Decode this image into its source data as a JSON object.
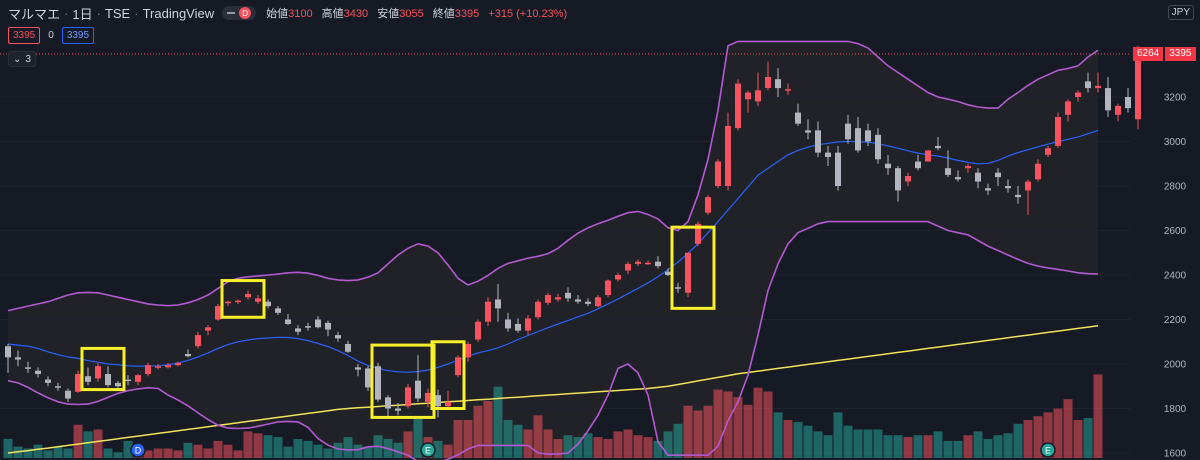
{
  "header": {
    "symbol": "マルマエ",
    "interval": "1日",
    "exchange": "TSE",
    "source": "TradingView",
    "interval_badge": "D",
    "open_label": "始値",
    "open": "3100",
    "high_label": "高値",
    "high": "3430",
    "low_label": "安値",
    "low": "3055",
    "close_label": "終値",
    "close": "3395",
    "change": "+315 (+10.23%)"
  },
  "trade": {
    "sell_price": "3395",
    "spread": "0",
    "buy_price": "3395"
  },
  "indicators_toggle": {
    "count": "3"
  },
  "currency": "JPY",
  "last_price_tag": {
    "countdown": "6264",
    "price": "3395"
  },
  "colors": {
    "background": "#161a25",
    "up_candle": "#f7525f",
    "down_candle": "#b2b5be",
    "bollinger_band": "#b35ad2",
    "bollinger_mid": "#2962ff",
    "long_ma": "#f2e45a",
    "highlight_box": "#f7f02b",
    "volume_up": "#f7525f",
    "volume_down": "#26a69a"
  },
  "chart_data": {
    "type": "candlestick",
    "ylim": [
      1600,
      3420
    ],
    "yticks": [
      1600,
      1800,
      2000,
      2200,
      2400,
      2600,
      2800,
      3000,
      3200
    ],
    "candles": [
      [
        2080,
        2090,
        1960,
        2030
      ],
      [
        2030,
        2060,
        1990,
        2020
      ],
      [
        1985,
        2010,
        1960,
        1980
      ],
      [
        1970,
        1985,
        1940,
        1955
      ],
      [
        1930,
        1945,
        1900,
        1915
      ],
      [
        1900,
        1915,
        1880,
        1895
      ],
      [
        1880,
        1890,
        1830,
        1845
      ],
      [
        1875,
        1970,
        1870,
        1955
      ],
      [
        1945,
        1985,
        1905,
        1920
      ],
      [
        1935,
        2005,
        1920,
        1990
      ],
      [
        1955,
        1990,
        1895,
        1905
      ],
      [
        1915,
        1925,
        1890,
        1900
      ],
      [
        1930,
        1950,
        1905,
        1925
      ],
      [
        1920,
        1955,
        1905,
        1950
      ],
      [
        1955,
        2005,
        1945,
        1995
      ],
      [
        1990,
        2000,
        1975,
        1990
      ],
      [
        1985,
        2005,
        1980,
        1995
      ],
      [
        1995,
        2010,
        1990,
        2005
      ],
      [
        2045,
        2065,
        2030,
        2035
      ],
      [
        2080,
        2145,
        2070,
        2130
      ],
      [
        2150,
        2175,
        2130,
        2165
      ],
      [
        2200,
        2270,
        2195,
        2260
      ],
      [
        2275,
        2285,
        2260,
        2280
      ],
      [
        2280,
        2290,
        2270,
        2285
      ],
      [
        2300,
        2330,
        2290,
        2315
      ],
      [
        2280,
        2310,
        2270,
        2295
      ],
      [
        2280,
        2290,
        2250,
        2260
      ],
      [
        2250,
        2260,
        2220,
        2230
      ],
      [
        2200,
        2225,
        2175,
        2180
      ],
      [
        2160,
        2175,
        2130,
        2145
      ],
      [
        2170,
        2185,
        2150,
        2165
      ],
      [
        2200,
        2215,
        2160,
        2165
      ],
      [
        2185,
        2195,
        2125,
        2155
      ],
      [
        2130,
        2145,
        2100,
        2115
      ],
      [
        2090,
        2105,
        2050,
        2055
      ],
      [
        1985,
        2000,
        1945,
        1975
      ],
      [
        1980,
        1990,
        1880,
        1895
      ],
      [
        1990,
        2005,
        1830,
        1840
      ],
      [
        1850,
        1860,
        1760,
        1800
      ],
      [
        1800,
        1825,
        1770,
        1790
      ],
      [
        1810,
        1910,
        1800,
        1895
      ],
      [
        1925,
        2040,
        1830,
        1845
      ],
      [
        1830,
        1890,
        1805,
        1870
      ],
      [
        1860,
        1885,
        1760,
        1810
      ],
      [
        1810,
        1880,
        1795,
        1830
      ],
      [
        1950,
        2040,
        1940,
        2030
      ],
      [
        2030,
        2100,
        2010,
        2090
      ],
      [
        2110,
        2200,
        2100,
        2190
      ],
      [
        2190,
        2300,
        2170,
        2280
      ],
      [
        2290,
        2360,
        2190,
        2250
      ],
      [
        2200,
        2230,
        2145,
        2160
      ],
      [
        2180,
        2205,
        2140,
        2150
      ],
      [
        2150,
        2220,
        2130,
        2205
      ],
      [
        2210,
        2290,
        2200,
        2280
      ],
      [
        2275,
        2320,
        2265,
        2310
      ],
      [
        2290,
        2315,
        2280,
        2300
      ],
      [
        2320,
        2345,
        2280,
        2295
      ],
      [
        2290,
        2310,
        2270,
        2280
      ],
      [
        2280,
        2295,
        2260,
        2270
      ],
      [
        2260,
        2310,
        2255,
        2300
      ],
      [
        2310,
        2380,
        2300,
        2375
      ],
      [
        2380,
        2410,
        2370,
        2400
      ],
      [
        2420,
        2460,
        2405,
        2450
      ],
      [
        2450,
        2470,
        2440,
        2460
      ],
      [
        2455,
        2465,
        2445,
        2455
      ],
      [
        2460,
        2485,
        2430,
        2440
      ],
      [
        2415,
        2430,
        2395,
        2400
      ],
      [
        2345,
        2365,
        2320,
        2340
      ],
      [
        2320,
        2500,
        2300,
        2500
      ],
      [
        2540,
        2640,
        2530,
        2630
      ],
      [
        2680,
        2760,
        2670,
        2750
      ],
      [
        2800,
        2920,
        2790,
        2910
      ],
      [
        2800,
        3130,
        2780,
        3070
      ],
      [
        3060,
        3280,
        3050,
        3260
      ],
      [
        3190,
        3230,
        3130,
        3220
      ],
      [
        3180,
        3310,
        3160,
        3230
      ],
      [
        3240,
        3360,
        3230,
        3290
      ],
      [
        3280,
        3330,
        3200,
        3240
      ],
      [
        3230,
        3260,
        3210,
        3235
      ],
      [
        3130,
        3170,
        3070,
        3080
      ],
      [
        3050,
        3100,
        3010,
        3040
      ],
      [
        3050,
        3090,
        2930,
        2950
      ],
      [
        2950,
        2980,
        2890,
        2930
      ],
      [
        2950,
        2980,
        2780,
        2800
      ],
      [
        3080,
        3120,
        2990,
        3010
      ],
      [
        3060,
        3110,
        2950,
        2960
      ],
      [
        3050,
        3080,
        2980,
        3000
      ],
      [
        3030,
        3060,
        2900,
        2920
      ],
      [
        2900,
        2940,
        2850,
        2880
      ],
      [
        2880,
        2890,
        2730,
        2780
      ],
      [
        2820,
        2860,
        2800,
        2845
      ],
      [
        2910,
        2940,
        2870,
        2880
      ],
      [
        2910,
        2960,
        2910,
        2960
      ],
      [
        2980,
        3020,
        2960,
        2970
      ],
      [
        2880,
        2960,
        2840,
        2850
      ],
      [
        2840,
        2870,
        2820,
        2830
      ],
      [
        2880,
        2900,
        2860,
        2890
      ],
      [
        2860,
        2880,
        2790,
        2820
      ],
      [
        2790,
        2810,
        2760,
        2780
      ],
      [
        2860,
        2880,
        2800,
        2840
      ],
      [
        2800,
        2830,
        2770,
        2790
      ],
      [
        2760,
        2800,
        2720,
        2750
      ],
      [
        2780,
        2830,
        2670,
        2820
      ],
      [
        2830,
        2920,
        2820,
        2900
      ],
      [
        2940,
        2980,
        2930,
        2970
      ],
      [
        2980,
        3130,
        2970,
        3110
      ],
      [
        3120,
        3190,
        3090,
        3180
      ],
      [
        3200,
        3230,
        3180,
        3220
      ],
      [
        3270,
        3310,
        3220,
        3240
      ],
      [
        3240,
        3310,
        3220,
        3250
      ],
      [
        3240,
        3290,
        3110,
        3140
      ],
      [
        3120,
        3170,
        3090,
        3160
      ],
      [
        3200,
        3240,
        3130,
        3150
      ],
      [
        3100,
        3430,
        3055,
        3395
      ]
    ],
    "bb_upper": [
      2240,
      2250,
      2260,
      2270,
      2280,
      2295,
      2310,
      2320,
      2322,
      2320,
      2310,
      2300,
      2290,
      2280,
      2270,
      2265,
      2262,
      2265,
      2275,
      2290,
      2310,
      2340,
      2370,
      2385,
      2392,
      2396,
      2400,
      2404,
      2410,
      2412,
      2408,
      2398,
      2385,
      2378,
      2375,
      2378,
      2390,
      2410,
      2450,
      2490,
      2520,
      2540,
      2530,
      2500,
      2445,
      2385,
      2355,
      2372,
      2398,
      2430,
      2452,
      2464,
      2476,
      2484,
      2496,
      2520,
      2556,
      2588,
      2612,
      2630,
      2646,
      2664,
      2680,
      2686,
      2672,
      2652,
      2612,
      2600,
      2640,
      2760,
      2920,
      3140,
      3430,
      3450,
      3450,
      3450,
      3450,
      3450,
      3450,
      3450,
      3450,
      3450,
      3450,
      3450,
      3450,
      3440,
      3420,
      3380,
      3340,
      3310,
      3280,
      3250,
      3220,
      3200,
      3190,
      3180,
      3165,
      3155,
      3150,
      3150,
      3190,
      3220,
      3252,
      3280,
      3300,
      3320,
      3328,
      3340,
      3380,
      3410
    ],
    "bb_mid": [
      2090,
      2085,
      2080,
      2070,
      2055,
      2042,
      2032,
      2025,
      2015,
      2008,
      2000,
      1997,
      1992,
      1990,
      1991,
      1992,
      1996,
      2005,
      2016,
      2032,
      2050,
      2070,
      2087,
      2100,
      2108,
      2114,
      2117,
      2120,
      2119,
      2114,
      2105,
      2092,
      2078,
      2060,
      2038,
      2013,
      1993,
      1980,
      1970,
      1965,
      1963,
      1966,
      1973,
      1985,
      2000,
      2018,
      2035,
      2050,
      2060,
      2073,
      2090,
      2110,
      2128,
      2146,
      2163,
      2180,
      2195,
      2212,
      2228,
      2248,
      2270,
      2292,
      2316,
      2340,
      2365,
      2392,
      2424,
      2458,
      2498,
      2540,
      2590,
      2640,
      2692,
      2744,
      2796,
      2848,
      2880,
      2910,
      2940,
      2960,
      2975,
      2985,
      2992,
      2998,
      3000,
      3000,
      2997,
      2990,
      2980,
      2970,
      2958,
      2948,
      2940,
      2935,
      2926,
      2915,
      2906,
      2900,
      2902,
      2915,
      2935,
      2950,
      2963,
      2976,
      2988,
      3000,
      3010,
      3020,
      3035,
      3050
    ],
    "bb_lower": [
      1925,
      1915,
      1895,
      1870,
      1848,
      1830,
      1820,
      1818,
      1820,
      1832,
      1850,
      1868,
      1880,
      1888,
      1893,
      1890,
      1860,
      1838,
      1812,
      1780,
      1750,
      1725,
      1712,
      1710,
      1712,
      1720,
      1730,
      1740,
      1742,
      1740,
      1715,
      1665,
      1635,
      1618,
      1614,
      1615,
      1628,
      1630,
      1620,
      1605,
      1590,
      1562,
      1552,
      1556,
      1572,
      1592,
      1618,
      1634,
      1634,
      1634,
      1634,
      1634,
      1634,
      1600,
      1595,
      1595,
      1600,
      1640,
      1700,
      1770,
      1860,
      1980,
      2000,
      1960,
      1860,
      1650,
      1590,
      1590,
      1590,
      1590,
      1590,
      1630,
      1745,
      1830,
      1950,
      2130,
      2330,
      2450,
      2540,
      2590,
      2610,
      2630,
      2640,
      2640,
      2640,
      2640,
      2640,
      2640,
      2640,
      2640,
      2640,
      2640,
      2640,
      2620,
      2600,
      2590,
      2580,
      2555,
      2530,
      2510,
      2490,
      2470,
      2452,
      2440,
      2432,
      2425,
      2418,
      2410,
      2406,
      2405
    ],
    "long_ma": [
      1600,
      1606,
      1611,
      1617,
      1622,
      1628,
      1634,
      1640,
      1646,
      1652,
      1658,
      1664,
      1670,
      1676,
      1682,
      1688,
      1694,
      1700,
      1706,
      1712,
      1718,
      1724,
      1730,
      1736,
      1742,
      1748,
      1754,
      1760,
      1766,
      1772,
      1778,
      1784,
      1790,
      1796,
      1800,
      1803,
      1806,
      1809,
      1812,
      1815,
      1818,
      1821,
      1824,
      1827,
      1830,
      1833,
      1836,
      1839,
      1842,
      1845,
      1848,
      1851,
      1854,
      1857,
      1860,
      1863,
      1866,
      1869,
      1872,
      1875,
      1878,
      1881,
      1884,
      1887,
      1890,
      1895,
      1900,
      1908,
      1916,
      1924,
      1932,
      1940,
      1948,
      1956,
      1962,
      1968,
      1974,
      1980,
      1986,
      1992,
      1998,
      2004,
      2010,
      2016,
      2022,
      2028,
      2034,
      2040,
      2046,
      2052,
      2058,
      2064,
      2070,
      2076,
      2082,
      2088,
      2094,
      2100,
      2106,
      2112,
      2118,
      2124,
      2130,
      2136,
      2142,
      2148,
      2154,
      2160,
      2166,
      2172
    ],
    "volume": [
      20,
      12,
      10,
      14,
      8,
      12,
      10,
      35,
      28,
      30,
      10,
      6,
      18,
      14,
      8,
      10,
      10,
      8,
      16,
      14,
      10,
      18,
      14,
      8,
      28,
      26,
      24,
      22,
      12,
      20,
      18,
      14,
      10,
      16,
      22,
      14,
      12,
      24,
      20,
      16,
      28,
      42,
      22,
      18,
      14,
      40,
      40,
      55,
      60,
      75,
      40,
      35,
      30,
      45,
      30,
      20,
      24,
      22,
      26,
      22,
      20,
      28,
      30,
      24,
      22,
      18,
      28,
      36,
      55,
      50,
      55,
      72,
      70,
      64,
      56,
      74,
      70,
      48,
      40,
      38,
      34,
      28,
      24,
      48,
      34,
      30,
      30,
      30,
      24,
      24,
      22,
      24,
      24,
      28,
      18,
      18,
      24,
      28,
      20,
      24,
      26,
      36,
      40,
      44,
      48,
      52,
      62,
      40,
      42,
      88
    ],
    "markers": [
      {
        "index": 13,
        "letter": "D"
      },
      {
        "index": 42,
        "letter": "E"
      },
      {
        "index": 104,
        "letter": "E"
      }
    ],
    "highlights": [
      {
        "from": 8,
        "to": 11,
        "low": 1885,
        "high": 2070
      },
      {
        "from": 22,
        "to": 25,
        "low": 2210,
        "high": 2375
      },
      {
        "from": 37,
        "to": 42,
        "low": 1760,
        "high": 2085
      },
      {
        "from": 43,
        "to": 45,
        "low": 1800,
        "high": 2100
      },
      {
        "from": 67,
        "to": 70,
        "low": 2250,
        "high": 2615
      }
    ]
  }
}
